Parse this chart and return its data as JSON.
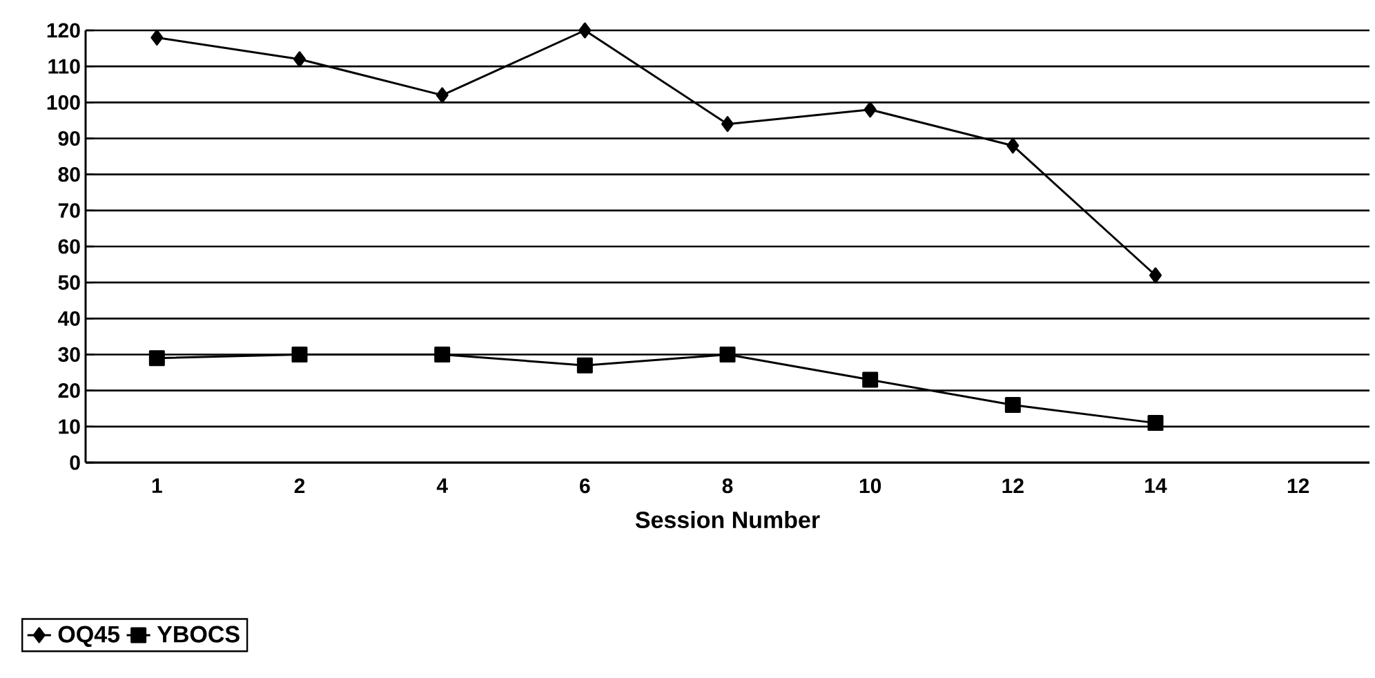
{
  "chart_data": {
    "type": "line",
    "xlabel": "Session Number",
    "categories": [
      "1",
      "2",
      "4",
      "6",
      "8",
      "10",
      "12",
      "14",
      "12"
    ],
    "series": [
      {
        "name": "OQ45",
        "color": "#000000",
        "marker": "diamond",
        "values": [
          118,
          112,
          102,
          120,
          94,
          98,
          88,
          52,
          null
        ]
      },
      {
        "name": "YBOCS",
        "color": "#000000",
        "marker": "square",
        "values": [
          29,
          30,
          30,
          27,
          30,
          23,
          16,
          11,
          null
        ]
      }
    ],
    "ylim": [
      0,
      120
    ],
    "yticks": [
      0,
      10,
      20,
      30,
      40,
      50,
      60,
      70,
      80,
      90,
      100,
      110,
      120
    ],
    "grid": "y",
    "legend": "bottom left",
    "line_style": "solid"
  }
}
